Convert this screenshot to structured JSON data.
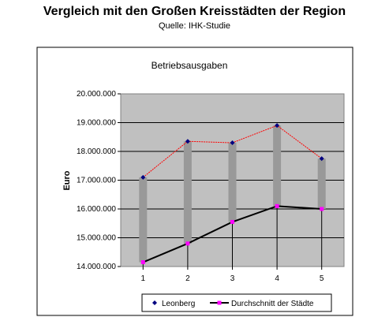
{
  "page": {
    "title": "Vergleich mit den Großen Kreisstädten der Region",
    "subtitle": "Quelle: IHK-Studie"
  },
  "chart_data": {
    "type": "line",
    "title": "Betriebsausgaben",
    "xlabel": "",
    "ylabel": "Euro",
    "categories": [
      "1",
      "2",
      "3",
      "4",
      "5"
    ],
    "ylim": [
      14000000,
      20000000
    ],
    "y_ticks": [
      14000000,
      15000000,
      16000000,
      17000000,
      18000000,
      19000000,
      20000000
    ],
    "y_tick_labels": [
      "14.000.000",
      "15.000.000",
      "16.000.000",
      "17.000.000",
      "18.000.000",
      "19.000.000",
      "20.000.000"
    ],
    "grid": true,
    "legend_position": "bottom",
    "series": [
      {
        "name": "Leonberg",
        "values": [
          17100000,
          18350000,
          18300000,
          18900000,
          17750000
        ],
        "color": "#000080",
        "line_color": "#ff0000",
        "marker": "diamond"
      },
      {
        "name": "Durchschnitt der Städte",
        "values": [
          14150000,
          14800000,
          15550000,
          16100000,
          16000000
        ],
        "color": "#000000",
        "marker_color": "#ff00ff",
        "marker": "square"
      }
    ],
    "hi_lo_bar_color": "#999999",
    "plot_bg": "#c0c0c0"
  }
}
